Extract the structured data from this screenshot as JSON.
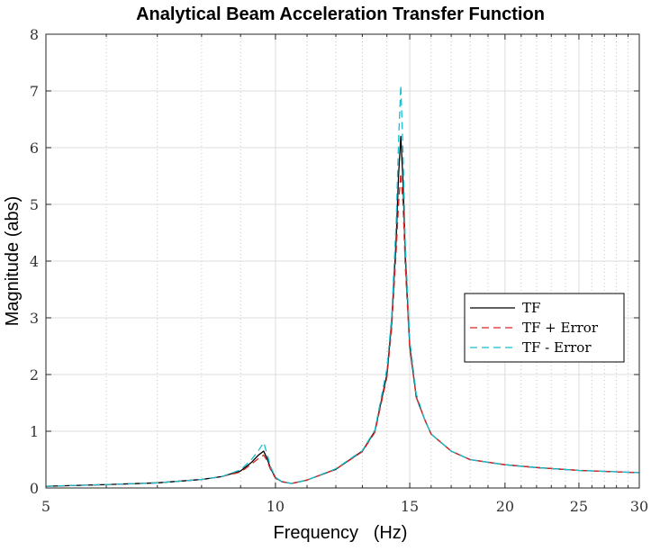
{
  "chart_data": {
    "type": "line",
    "title": "Analytical Beam Acceleration Transfer Function",
    "xlabel": "Frequency   (Hz)",
    "ylabel": "Magnitude (abs)",
    "xscale": "log",
    "xlim": [
      5,
      30
    ],
    "ylim": [
      0,
      8
    ],
    "xticks": [
      5,
      10,
      15,
      20,
      25,
      30
    ],
    "xtick_labels": [
      "5",
      "10",
      "15",
      "20",
      "25",
      "30"
    ],
    "xminor_ticks": [
      6,
      7,
      8,
      9,
      11,
      12,
      13,
      14,
      16,
      17,
      18,
      19,
      21,
      22,
      23,
      24,
      26,
      27,
      28,
      29
    ],
    "yticks": [
      0,
      1,
      2,
      3,
      4,
      5,
      6,
      7,
      8
    ],
    "ytick_labels": [
      "0",
      "1",
      "2",
      "3",
      "4",
      "5",
      "6",
      "7",
      "8"
    ],
    "grid": true,
    "legend_position": "right",
    "series": [
      {
        "name": "TF",
        "color": "#000000",
        "dash": "solid",
        "x": [
          5,
          6,
          7,
          8,
          8.5,
          9,
          9.3,
          9.5,
          9.65,
          9.75,
          9.85,
          10,
          10.2,
          10.5,
          11,
          12,
          13,
          13.5,
          14,
          14.2,
          14.4,
          14.5,
          14.6,
          14.7,
          14.8,
          15,
          15.3,
          15.7,
          16,
          17,
          18,
          20,
          22,
          25,
          30
        ],
        "y": [
          0.03,
          0.06,
          0.09,
          0.15,
          0.2,
          0.3,
          0.45,
          0.58,
          0.65,
          0.52,
          0.35,
          0.18,
          0.11,
          0.08,
          0.14,
          0.33,
          0.65,
          1.0,
          2.0,
          2.9,
          4.4,
          5.5,
          6.2,
          5.4,
          4.1,
          2.5,
          1.6,
          1.2,
          0.95,
          0.65,
          0.5,
          0.41,
          0.36,
          0.31,
          0.27
        ]
      },
      {
        "name": "TF + Error",
        "color": "#d62728",
        "dash": "dashed",
        "x": [
          5,
          6,
          7,
          8,
          8.5,
          9,
          9.3,
          9.5,
          9.65,
          9.75,
          9.85,
          10,
          10.2,
          10.5,
          11,
          12,
          13,
          13.5,
          14,
          14.2,
          14.4,
          14.5,
          14.6,
          14.7,
          14.8,
          15,
          15.3,
          15.7,
          16,
          17,
          18,
          20,
          22,
          25,
          30
        ],
        "y": [
          0.03,
          0.06,
          0.09,
          0.15,
          0.2,
          0.28,
          0.42,
          0.52,
          0.58,
          0.48,
          0.33,
          0.17,
          0.11,
          0.08,
          0.14,
          0.33,
          0.64,
          0.98,
          1.95,
          2.8,
          4.2,
          5.0,
          5.55,
          5.0,
          3.9,
          2.45,
          1.6,
          1.2,
          0.95,
          0.65,
          0.5,
          0.41,
          0.36,
          0.31,
          0.27
        ]
      },
      {
        "name": "TF - Error",
        "color": "#17becf",
        "dash": "dashed",
        "x": [
          5,
          6,
          7,
          8,
          8.5,
          9,
          9.3,
          9.5,
          9.65,
          9.75,
          9.85,
          10,
          10.2,
          10.5,
          11,
          12,
          13,
          13.5,
          14,
          14.2,
          14.4,
          14.5,
          14.6,
          14.7,
          14.8,
          15,
          15.3,
          15.7,
          16,
          17,
          18,
          20,
          22,
          25,
          30
        ],
        "y": [
          0.03,
          0.06,
          0.09,
          0.15,
          0.2,
          0.32,
          0.5,
          0.66,
          0.8,
          0.6,
          0.38,
          0.19,
          0.11,
          0.08,
          0.14,
          0.34,
          0.66,
          1.02,
          2.1,
          3.0,
          4.7,
          6.1,
          7.1,
          5.9,
          4.3,
          2.6,
          1.65,
          1.2,
          0.95,
          0.65,
          0.5,
          0.41,
          0.36,
          0.31,
          0.27
        ]
      }
    ]
  }
}
